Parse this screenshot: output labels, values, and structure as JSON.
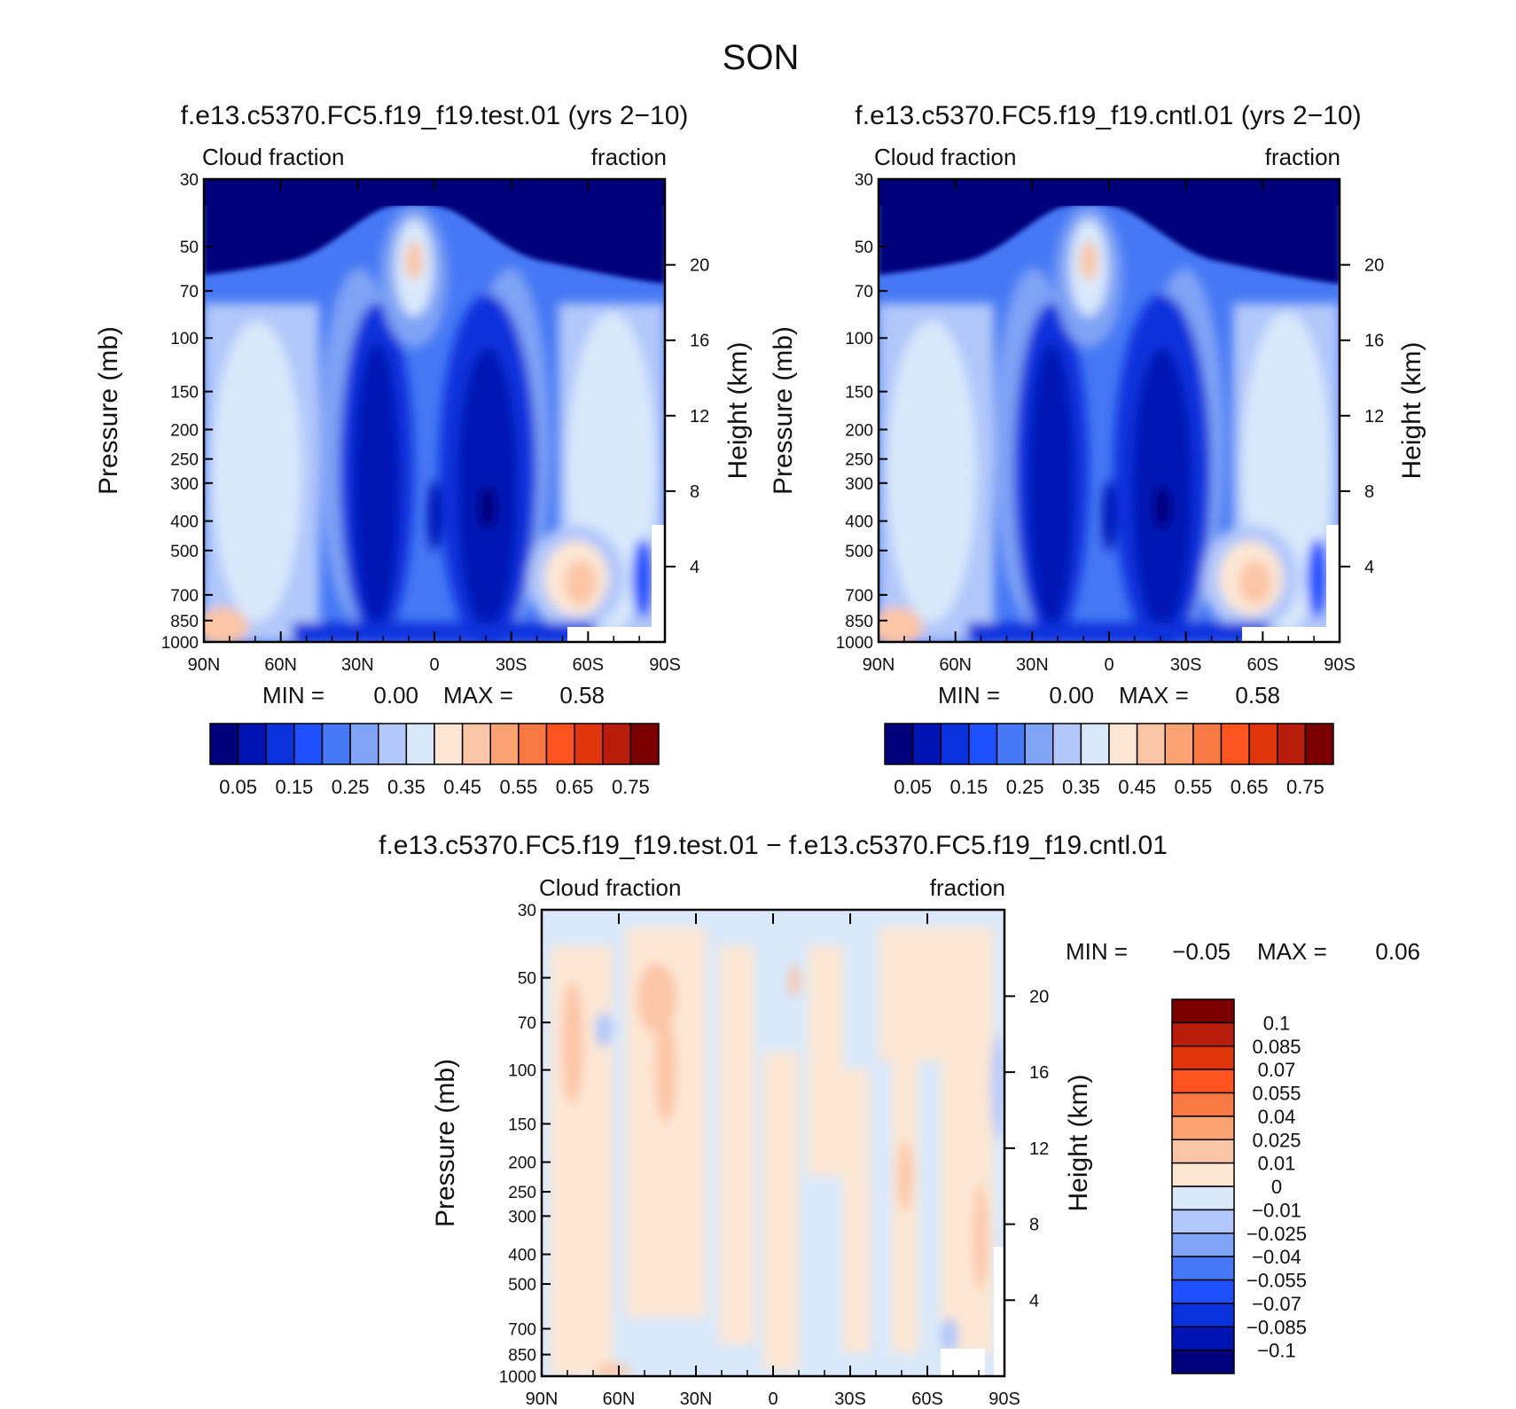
{
  "figure": {
    "season_title": "SON"
  },
  "chart_data": [
    {
      "type": "heatmap",
      "id": "test",
      "title": "f.e13.c5370.FC5.f19_f19.test.01 (yrs 2−10)",
      "left_label": "Cloud fraction",
      "right_label": "fraction",
      "ylabel": "Pressure (mb)",
      "y2label": "Height (km)",
      "x_ticks": [
        "90N",
        "60N",
        "30N",
        "0",
        "30S",
        "60S",
        "90S"
      ],
      "y_ticks": [
        "30",
        "50",
        "70",
        "100",
        "150",
        "200",
        "250",
        "300",
        "400",
        "500",
        "700",
        "850",
        "1000"
      ],
      "y2_ticks": [
        "20",
        "16",
        "12",
        "8",
        "4"
      ],
      "ylim": [
        1000,
        30
      ],
      "min_text": "MIN =",
      "min_value": "0.00",
      "max_text": "MAX =",
      "max_value": "0.58",
      "colorbar_labels": [
        "0.05",
        "0.15",
        "0.25",
        "0.35",
        "0.45",
        "0.55",
        "0.65",
        "0.75"
      ],
      "colorbar_colors": [
        "#00007a",
        "#0014b4",
        "#0a32dc",
        "#1e50ff",
        "#4678f5",
        "#7fa3f5",
        "#b2c8fa",
        "#d9e9fb",
        "#fde7d4",
        "#fcc5a6",
        "#fba273",
        "#fa7843",
        "#ff541f",
        "#e0340a",
        "#b81c0b",
        "#7a0000"
      ],
      "range_text": "0.00 – 0.58"
    },
    {
      "type": "heatmap",
      "id": "cntl",
      "title": "f.e13.c5370.FC5.f19_f19.cntl.01 (yrs 2−10)",
      "left_label": "Cloud fraction",
      "right_label": "fraction",
      "ylabel": "Pressure (mb)",
      "y2label": "Height (km)",
      "x_ticks": [
        "90N",
        "60N",
        "30N",
        "0",
        "30S",
        "60S",
        "90S"
      ],
      "y_ticks": [
        "30",
        "50",
        "70",
        "100",
        "150",
        "200",
        "250",
        "300",
        "400",
        "500",
        "700",
        "850",
        "1000"
      ],
      "y2_ticks": [
        "20",
        "16",
        "12",
        "8",
        "4"
      ],
      "ylim": [
        1000,
        30
      ],
      "min_text": "MIN =",
      "min_value": "0.00",
      "max_text": "MAX =",
      "max_value": "0.58",
      "colorbar_labels": [
        "0.05",
        "0.15",
        "0.25",
        "0.35",
        "0.45",
        "0.55",
        "0.65",
        "0.75"
      ],
      "colorbar_colors": [
        "#00007a",
        "#0014b4",
        "#0a32dc",
        "#1e50ff",
        "#4678f5",
        "#7fa3f5",
        "#b2c8fa",
        "#d9e9fb",
        "#fde7d4",
        "#fcc5a6",
        "#fba273",
        "#fa7843",
        "#ff541f",
        "#e0340a",
        "#b81c0b",
        "#7a0000"
      ]
    },
    {
      "type": "heatmap",
      "id": "diff",
      "title": "f.e13.c5370.FC5.f19_f19.test.01 − f.e13.c5370.FC5.f19_f19.cntl.01",
      "left_label": "Cloud fraction",
      "right_label": "fraction",
      "ylabel": "Pressure (mb)",
      "y2label": "Height (km)",
      "x_ticks": [
        "90N",
        "60N",
        "30N",
        "0",
        "30S",
        "60S",
        "90S"
      ],
      "y_ticks": [
        "30",
        "50",
        "70",
        "100",
        "150",
        "200",
        "250",
        "300",
        "400",
        "500",
        "700",
        "850",
        "1000"
      ],
      "y2_ticks": [
        "20",
        "16",
        "12",
        "8",
        "4"
      ],
      "ylim": [
        1000,
        30
      ],
      "min_text": "MIN =",
      "min_value": "−0.05",
      "max_text": "MAX =",
      "max_value": "0.06",
      "colorbar_labels": [
        "0.1",
        "0.085",
        "0.07",
        "0.055",
        "0.04",
        "0.025",
        "0.01",
        "0",
        "−0.01",
        "−0.025",
        "−0.04",
        "−0.055",
        "−0.07",
        "−0.085",
        "−0.1"
      ],
      "colorbar_colors": [
        "#7a0000",
        "#b81c0b",
        "#e0340a",
        "#ff541f",
        "#fa7843",
        "#fba273",
        "#fcc5a6",
        "#fde7d4",
        "#d9e9fb",
        "#b2c8fa",
        "#7fa3f5",
        "#4678f5",
        "#1e50ff",
        "#0a32dc",
        "#0014b4",
        "#00007a"
      ]
    }
  ]
}
